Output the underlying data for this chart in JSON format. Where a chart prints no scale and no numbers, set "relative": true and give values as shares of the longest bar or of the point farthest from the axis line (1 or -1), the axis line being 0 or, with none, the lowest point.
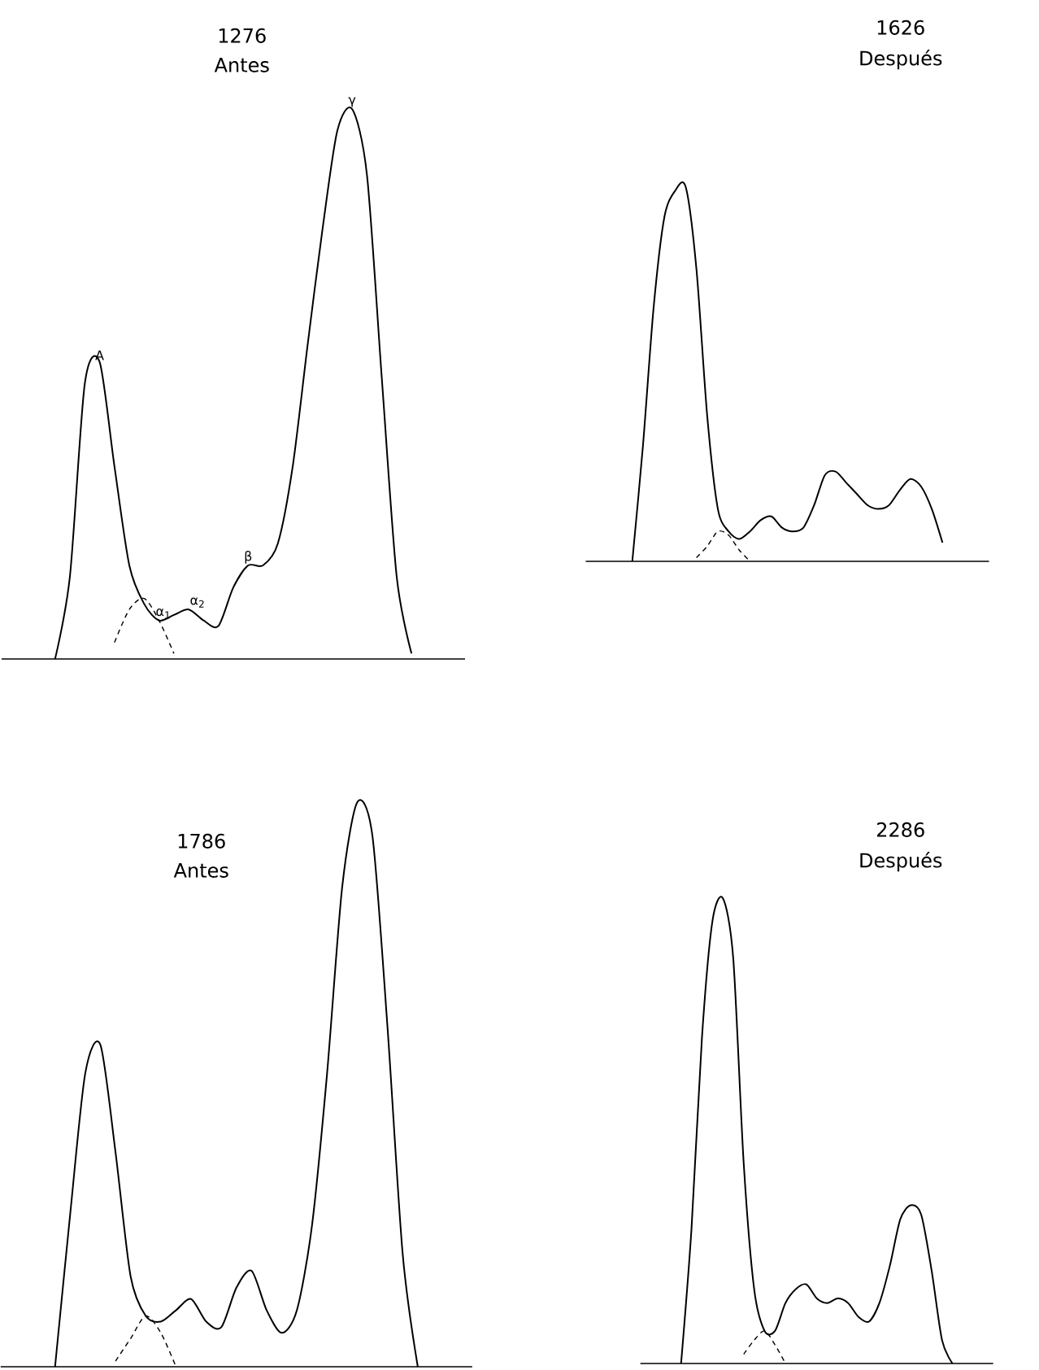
{
  "chart_data": [
    {
      "type": "line",
      "relative": true,
      "title": "1276",
      "subtitle": "Antes",
      "categories": [
        null,
        null,
        null,
        null,
        null,
        null,
        null,
        null,
        null,
        null,
        null,
        null,
        null,
        null,
        null,
        null,
        null,
        null,
        null,
        null,
        null,
        null,
        null,
        null,
        null
      ],
      "series": [
        {
          "color": "#000000",
          "line_style": "solid",
          "values": [
            0,
            0.15,
            0.5,
            0.54,
            0.35,
            0.17,
            0.1,
            0.07,
            0.08,
            0.09,
            0.07,
            0.06,
            0.13,
            0.17,
            0.17,
            0.21,
            0.35,
            0.57,
            0.78,
            0.96,
            1,
            0.88,
            0.51,
            0.15,
            0.01
          ]
        },
        {
          "color": "#000000",
          "line_style": "dashed",
          "values": [
            null,
            null,
            null,
            null,
            0.03,
            0.09,
            0.11,
            0.07,
            0.01,
            null,
            null,
            null,
            null,
            null,
            null,
            null,
            null,
            null,
            null,
            null,
            null,
            null,
            null,
            null,
            null
          ]
        }
      ],
      "annotations": [
        {
          "text": "A",
          "y": 0.54
        },
        {
          "text": "α$_{1}$",
          "y": 0.07
        },
        {
          "text": "α$_{2}$",
          "y": 0.09
        },
        {
          "text": "β",
          "y": 0.17
        },
        {
          "text": "γ",
          "y": 1
        }
      ]
    },
    {
      "type": "line",
      "relative": true,
      "title": "1626",
      "subtitle": "Después",
      "categories": [
        null,
        null,
        null,
        null,
        null,
        null,
        null,
        null,
        null,
        null,
        null,
        null,
        null,
        null,
        null,
        null,
        null,
        null,
        null,
        null,
        null,
        null,
        null,
        null,
        null,
        null,
        null,
        null,
        null,
        null
      ],
      "series": [
        {
          "color": "#000000",
          "line_style": "solid",
          "values": [
            0,
            0.31,
            0.68,
            0.92,
            0.99,
            1,
            0.78,
            0.39,
            0.14,
            0.08,
            0.06,
            0.08,
            0.11,
            0.12,
            0.09,
            0.08,
            0.09,
            0.15,
            0.23,
            0.24,
            0.21,
            0.18,
            0.15,
            0.14,
            0.15,
            0.19,
            0.22,
            0.2,
            0.14,
            0.05
          ]
        },
        {
          "color": "#000000",
          "line_style": "dashed",
          "values": [
            null,
            null,
            null,
            null,
            null,
            null,
            0.01,
            0.04,
            0.08,
            0.07,
            0.03,
            0,
            null,
            null,
            null,
            null,
            null,
            null,
            null,
            null,
            null,
            null,
            null,
            null,
            null,
            null,
            null,
            null,
            null,
            null
          ]
        }
      ]
    },
    {
      "type": "line",
      "relative": true,
      "title": "1786",
      "subtitle": "Antes",
      "categories": [
        null,
        null,
        null,
        null,
        null,
        null,
        null,
        null,
        null,
        null,
        null,
        null,
        null,
        null,
        null,
        null,
        null,
        null,
        null,
        null,
        null,
        null,
        null,
        null,
        null
      ],
      "series": [
        {
          "color": "#000000",
          "line_style": "solid",
          "values": [
            0,
            0.27,
            0.52,
            0.57,
            0.38,
            0.16,
            0.09,
            0.08,
            0.1,
            0.12,
            0.08,
            0.07,
            0.14,
            0.17,
            0.1,
            0.06,
            0.1,
            0.25,
            0.52,
            0.85,
            1,
            0.94,
            0.6,
            0.2,
            0
          ]
        },
        {
          "color": "#000000",
          "line_style": "dashed",
          "values": [
            null,
            null,
            null,
            null,
            0.01,
            0.05,
            0.09,
            0.06,
            0,
            null,
            null,
            null,
            null,
            null,
            null,
            null,
            null,
            null,
            null,
            null,
            null,
            null,
            null,
            null,
            null
          ]
        }
      ]
    },
    {
      "type": "line",
      "relative": true,
      "title": "2286",
      "subtitle": "Después",
      "categories": [
        null,
        null,
        null,
        null,
        null,
        null,
        null,
        null,
        null,
        null,
        null,
        null,
        null,
        null,
        null,
        null,
        null,
        null,
        null,
        null,
        null,
        null,
        null,
        null,
        null,
        null,
        null
      ],
      "series": [
        {
          "color": "#000000",
          "line_style": "solid",
          "values": [
            0,
            0.29,
            0.7,
            0.95,
            1,
            0.87,
            0.43,
            0.16,
            0.07,
            0.07,
            0.13,
            0.16,
            0.17,
            0.14,
            0.13,
            0.14,
            0.13,
            0.1,
            0.09,
            0.13,
            0.21,
            0.31,
            0.34,
            0.32,
            0.2,
            0.05,
            0
          ]
        },
        {
          "color": "#000000",
          "line_style": "dashed",
          "values": [
            null,
            null,
            null,
            null,
            null,
            null,
            0.02,
            0.05,
            0.07,
            0.04,
            0,
            null,
            null,
            null,
            null,
            null,
            null,
            null,
            null,
            null,
            null,
            null,
            null,
            null,
            null,
            null,
            null
          ]
        }
      ]
    }
  ]
}
